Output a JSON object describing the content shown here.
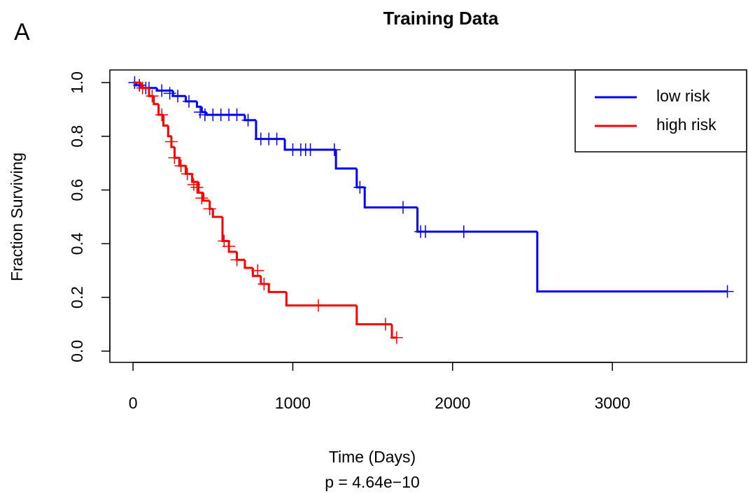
{
  "panel_label": "A",
  "chart_data": {
    "type": "survival",
    "title": "Training Data",
    "x_label": "Time (Days)",
    "y_label": "Fraction Surviving",
    "annotation": "p = 4.64e−10",
    "xlim": [
      -145,
      3840
    ],
    "ylim": [
      -0.042,
      1.047
    ],
    "xticks": [
      0,
      1000,
      2000,
      3000
    ],
    "yticks": [
      {
        "value": 0,
        "label": "0.0"
      },
      0.2,
      0.4,
      0.6,
      0.8,
      {
        "value": 1,
        "label": "1.0"
      }
    ],
    "legend": "top-right",
    "series": [
      {
        "name": "low risk",
        "color": "#0000ff",
        "x": [
          0,
          20,
          60,
          150,
          250,
          330,
          400,
          430,
          460,
          700,
          770,
          950,
          1270,
          1400,
          1450,
          1780,
          2530,
          3720
        ],
        "values": [
          1.0,
          0.99,
          0.98,
          0.97,
          0.95,
          0.93,
          0.91,
          0.89,
          0.88,
          0.86,
          0.79,
          0.75,
          0.68,
          0.61,
          0.535,
          0.445,
          0.222,
          0.222
        ],
        "censored": {
          "x": [
            10,
            40,
            80,
            100,
            180,
            230,
            280,
            350,
            420,
            450,
            500,
            550,
            600,
            650,
            720,
            800,
            850,
            900,
            1000,
            1050,
            1080,
            1110,
            1260,
            1420,
            1690,
            1800,
            1830,
            2070,
            3720
          ],
          "values": [
            1.0,
            0.99,
            0.98,
            0.98,
            0.97,
            0.96,
            0.95,
            0.93,
            0.89,
            0.88,
            0.88,
            0.88,
            0.88,
            0.88,
            0.86,
            0.79,
            0.79,
            0.79,
            0.75,
            0.75,
            0.75,
            0.75,
            0.75,
            0.61,
            0.535,
            0.445,
            0.445,
            0.445,
            0.222
          ]
        }
      },
      {
        "name": "high risk",
        "color": "#ff0000",
        "x": [
          0,
          50,
          100,
          130,
          160,
          190,
          220,
          240,
          260,
          290,
          330,
          370,
          410,
          440,
          480,
          500,
          560,
          600,
          650,
          700,
          750,
          800,
          850,
          960,
          1400,
          1620,
          1650
        ],
        "values": [
          1.0,
          0.98,
          0.95,
          0.92,
          0.88,
          0.84,
          0.8,
          0.76,
          0.72,
          0.69,
          0.66,
          0.63,
          0.59,
          0.56,
          0.53,
          0.5,
          0.41,
          0.37,
          0.34,
          0.31,
          0.28,
          0.25,
          0.22,
          0.17,
          0.1,
          0.05,
          0.05
        ],
        "censored": {
          "x": [
            60,
            120,
            180,
            240,
            260,
            300,
            340,
            380,
            400,
            430,
            480,
            570,
            600,
            650,
            780,
            820,
            1160,
            1580,
            1650
          ],
          "values": [
            0.98,
            0.95,
            0.88,
            0.78,
            0.72,
            0.69,
            0.66,
            0.62,
            0.61,
            0.57,
            0.53,
            0.41,
            0.39,
            0.34,
            0.3,
            0.25,
            0.17,
            0.1,
            0.05
          ]
        }
      }
    ]
  }
}
